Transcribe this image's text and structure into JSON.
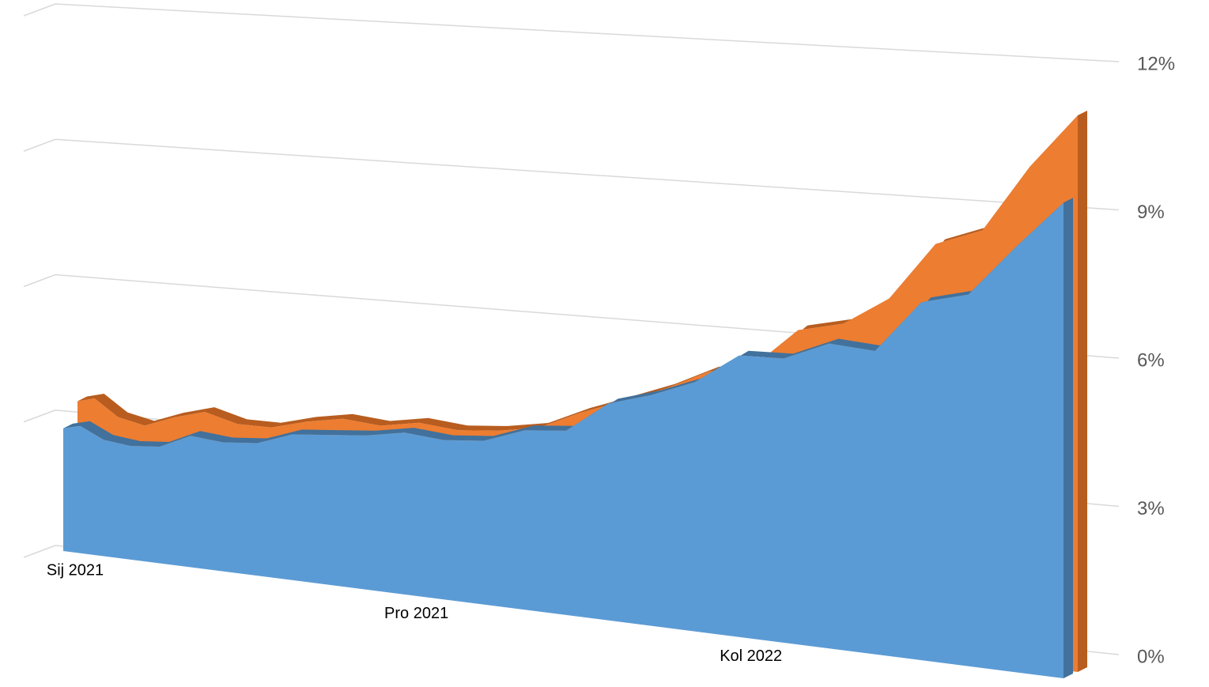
{
  "chart_data": {
    "type": "area3d",
    "categories": [
      "Sij 2021",
      null,
      null,
      null,
      null,
      null,
      null,
      null,
      null,
      null,
      null,
      "Pro 2021",
      null,
      null,
      null,
      null,
      null,
      null,
      null,
      "Kol 2022",
      null,
      null,
      null,
      null,
      null,
      null,
      null
    ],
    "series": [
      {
        "color": "#ed7d31",
        "values": [
          5.5,
          5.6,
          4.9,
          4.6,
          4.9,
          5.1,
          4.7,
          4.6,
          4.8,
          4.9,
          4.7,
          4.8,
          4.6,
          4.6,
          4.7,
          5.1,
          5.4,
          5.7,
          6.1,
          6.2,
          7.0,
          7.1,
          7.6,
          8.7,
          8.9,
          10.1,
          11.0
        ]
      },
      {
        "color": "#5b9bd5",
        "values": [
          4.7,
          4.8,
          4.3,
          4.1,
          4.1,
          4.5,
          4.3,
          4.3,
          4.6,
          4.6,
          4.6,
          4.7,
          4.5,
          4.5,
          4.8,
          4.8,
          5.5,
          5.7,
          6.0,
          6.6,
          6.5,
          6.8,
          6.6,
          7.6,
          7.7,
          8.6,
          9.4
        ]
      }
    ],
    "ylim": [
      0,
      12
    ],
    "yticks": [
      {
        "value": 0,
        "label": "0%"
      },
      {
        "value": 3,
        "label": "3%"
      },
      {
        "value": 6,
        "label": "6%"
      },
      {
        "value": 9,
        "label": "9%"
      },
      {
        "value": 12,
        "label": "12%"
      }
    ],
    "grid": true
  }
}
